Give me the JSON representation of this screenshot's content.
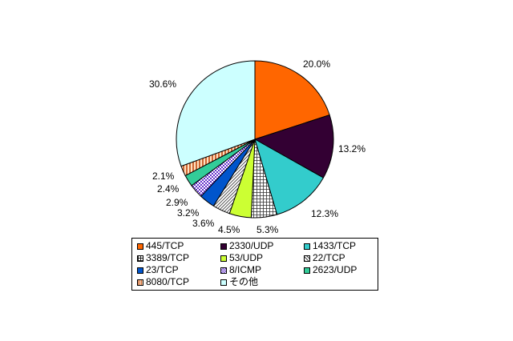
{
  "chart_data": {
    "type": "pie",
    "title": "",
    "start_angle_deg": 0,
    "direction": "clockwise",
    "slices": [
      {
        "label": "445/TCP",
        "value": 20.0,
        "value_label": "20.0%",
        "color": "#FF6600",
        "pattern": "solid"
      },
      {
        "label": "2330/UDP",
        "value": 13.2,
        "value_label": "13.2%",
        "color": "#330033",
        "pattern": "solid"
      },
      {
        "label": "1433/TCP",
        "value": 12.3,
        "value_label": "12.3%",
        "color": "#33CCCC",
        "pattern": "solid"
      },
      {
        "label": "3389/TCP",
        "value": 5.3,
        "value_label": "5.3%",
        "color": "#555555",
        "pattern": "grid"
      },
      {
        "label": "53/UDP",
        "value": 4.5,
        "value_label": "4.5%",
        "color": "#CCFF33",
        "pattern": "solid"
      },
      {
        "label": "22/TCP",
        "value": 3.6,
        "value_label": "3.6%",
        "color": "#666666",
        "pattern": "diagonal"
      },
      {
        "label": "23/TCP",
        "value": 3.2,
        "value_label": "3.2%",
        "color": "#0055CC",
        "pattern": "solid"
      },
      {
        "label": "8/ICMP",
        "value": 2.9,
        "value_label": "2.9%",
        "color": "#6633CC",
        "pattern": "checker"
      },
      {
        "label": "2623/UDP",
        "value": 2.4,
        "value_label": "2.4%",
        "color": "#33CC99",
        "pattern": "solid"
      },
      {
        "label": "8080/TCP",
        "value": 2.1,
        "value_label": "2.1%",
        "color": "#CC6633",
        "pattern": "vertical"
      },
      {
        "label": "その他",
        "value": 30.6,
        "value_label": "30.6%",
        "color": "#CCFFFF",
        "pattern": "solid"
      }
    ],
    "legend_position": "bottom",
    "legend_columns": 3
  }
}
